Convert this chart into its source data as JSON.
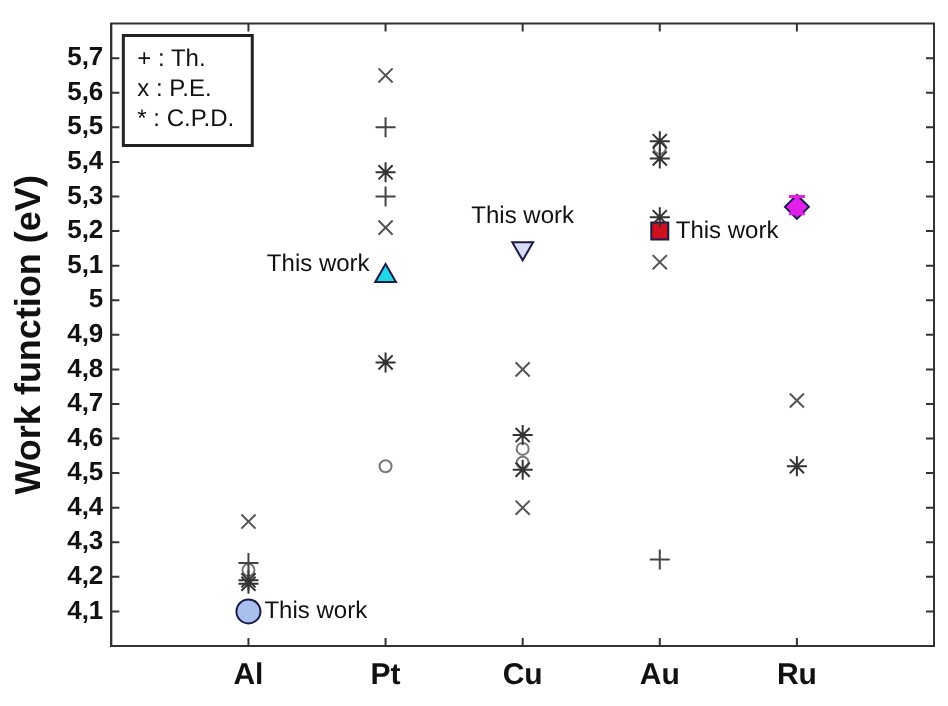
{
  "chart_data": {
    "type": "scatter",
    "ylabel": "Work function (eV)",
    "categories": [
      "Al",
      "Pt",
      "Cu",
      "Au",
      "Ru"
    ],
    "ylim": [
      4.0,
      5.8
    ],
    "yticks": [
      {
        "value": 4.1,
        "label": "4,1"
      },
      {
        "value": 4.2,
        "label": "4,2"
      },
      {
        "value": 4.3,
        "label": "4,3"
      },
      {
        "value": 4.4,
        "label": "4,4"
      },
      {
        "value": 4.5,
        "label": "4,5"
      },
      {
        "value": 4.6,
        "label": "4,6"
      },
      {
        "value": 4.7,
        "label": "4,7"
      },
      {
        "value": 4.8,
        "label": "4,8"
      },
      {
        "value": 4.9,
        "label": "4,9"
      },
      5,
      {
        "value": 5.1,
        "label": "5,1"
      },
      {
        "value": 5.2,
        "label": "5,2"
      },
      {
        "value": 5.3,
        "label": "5,3"
      },
      {
        "value": 5.4,
        "label": "5,4"
      },
      {
        "value": 5.5,
        "label": "5,5"
      },
      {
        "value": 5.6,
        "label": "5,6"
      },
      {
        "value": 5.7,
        "label": "5,7"
      }
    ],
    "grid": false,
    "series": [
      {
        "color": "#444444",
        "marker": "cross",
        "x": [
          "Al",
          "Pt",
          "Pt",
          "Au"
        ],
        "values": [
          4.24,
          5.5,
          5.3,
          4.25
        ]
      },
      {
        "color": "#555555",
        "x": [
          "Al",
          "Pt",
          "Pt",
          "Cu",
          "Cu",
          "Au",
          "Ru"
        ],
        "values": [
          4.36,
          5.65,
          5.21,
          4.8,
          4.4,
          5.11,
          4.71
        ]
      },
      {
        "color": "#333333",
        "x": [
          "Al",
          "Al",
          "Pt",
          "Pt",
          "Cu",
          "Cu",
          "Au",
          "Au",
          "Au",
          "Ru"
        ],
        "values": [
          4.19,
          4.18,
          5.37,
          4.82,
          4.61,
          4.51,
          5.46,
          5.41,
          5.24,
          4.52
        ]
      },
      {
        "color": "#777777",
        "marker": "circle",
        "x": [
          "Al",
          "Pt",
          "Cu",
          "Cu",
          "Au"
        ],
        "values": [
          4.22,
          4.52,
          4.57,
          4.53,
          5.44
        ]
      },
      {
        "color": "#a9c0ec",
        "marker": "circle",
        "x": [
          "Al"
        ],
        "values": [
          4.1
        ]
      },
      {
        "color": "#22d8e8",
        "marker": "triangle",
        "x": [
          "Pt"
        ],
        "values": [
          5.07
        ]
      },
      {
        "color": "#d8dcf4",
        "marker": "triangle_down",
        "x": [
          "Cu"
        ],
        "values": [
          5.15
        ]
      },
      {
        "color": "#d0101c",
        "marker": "square",
        "x": [
          "Au"
        ],
        "values": [
          5.2
        ]
      },
      {
        "color": "#e020e8",
        "marker": "diamond",
        "x": [
          "Ru"
        ],
        "values": [
          5.27
        ],
        "errors": [
          [
            5.25,
            5.3
          ]
        ]
      }
    ],
    "annotations": [
      "+ : Th.",
      "x : P.E.",
      "* : C.P.D.",
      {
        "text": "This work",
        "x": "Al",
        "y": 4.1
      },
      {
        "text": "This work",
        "x": "Pt",
        "y": 5.07
      },
      {
        "text": "This work",
        "x": "Cu",
        "y": 5.15
      },
      {
        "text": "This work",
        "x": "Au",
        "y": 5.2
      }
    ]
  }
}
